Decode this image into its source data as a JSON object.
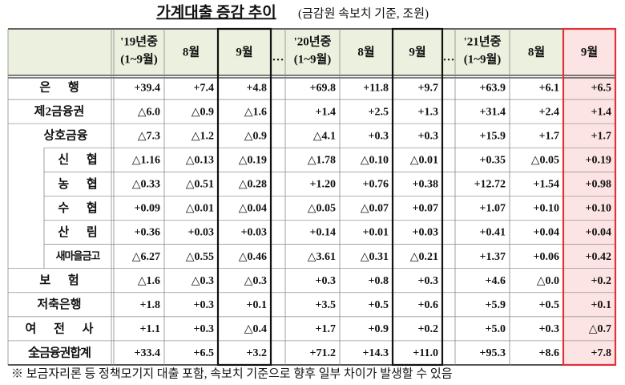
{
  "title": "가계대출 증감 추이",
  "title_note": "(금감원 속보치 기준, 조원)",
  "table": {
    "columns": [
      {
        "label": "'19년중",
        "sub": "(1~9월)"
      },
      {
        "label": "8월"
      },
      {
        "label": "9월"
      },
      {
        "label": "'20년중",
        "sub": "(1~9월)"
      },
      {
        "label": "8월"
      },
      {
        "label": "9월"
      },
      {
        "label": "'21년중",
        "sub": "(1~9월)"
      },
      {
        "label": "8월"
      },
      {
        "label": "9월"
      }
    ],
    "separators": [
      "…",
      "…"
    ],
    "rows": [
      {
        "label": "은 행",
        "cells": [
          "+39.4",
          "+7.4",
          "+4.8",
          "+69.8",
          "+11.8",
          "+9.7",
          "+63.9",
          "+6.1",
          "+6.5"
        ]
      },
      {
        "label": "제2금융권",
        "cells": [
          "△6.0",
          "△0.9",
          "△1.6",
          "+1.4",
          "+2.5",
          "+1.3",
          "+31.4",
          "+2.4",
          "+1.4"
        ]
      },
      {
        "label": "상호금융",
        "cells": [
          "△7.3",
          "△1.2",
          "△0.9",
          "△4.1",
          "+0.3",
          "+0.3",
          "+15.9",
          "+1.7",
          "+1.7"
        ]
      },
      {
        "label": "신 협",
        "cells": [
          "△1.16",
          "△0.13",
          "△0.19",
          "△1.78",
          "△0.10",
          "△0.01",
          "+0.35",
          "△0.05",
          "+0.19"
        ]
      },
      {
        "label": "농 협",
        "cells": [
          "△0.33",
          "△0.51",
          "△0.28",
          "+1.20",
          "+0.76",
          "+0.38",
          "+12.72",
          "+1.54",
          "+0.98"
        ]
      },
      {
        "label": "수 협",
        "cells": [
          "+0.09",
          "△0.01",
          "△0.04",
          "△0.05",
          "△0.07",
          "+0.07",
          "+1.07",
          "+0.10",
          "+0.10"
        ]
      },
      {
        "label": "산 림",
        "cells": [
          "+0.36",
          "+0.03",
          "+0.03",
          "+0.14",
          "+0.01",
          "+0.03",
          "+0.41",
          "+0.04",
          "+0.04"
        ]
      },
      {
        "label": "새마을금고",
        "cells": [
          "△6.27",
          "△0.55",
          "△0.46",
          "△3.61",
          "△0.31",
          "△0.21",
          "+1.37",
          "+0.06",
          "+0.42"
        ]
      },
      {
        "label": "보 험",
        "cells": [
          "△1.6",
          "△0.3",
          "△0.3",
          "+0.3",
          "+0.8",
          "+0.3",
          "+4.6",
          "△0.0",
          "+0.2"
        ]
      },
      {
        "label": "저축은행",
        "cells": [
          "+1.8",
          "+0.3",
          "+0.1",
          "+3.5",
          "+0.5",
          "+0.6",
          "+5.9",
          "+0.5",
          "+0.1"
        ]
      },
      {
        "label": "여 전 사",
        "cells": [
          "+1.1",
          "+0.3",
          "△0.4",
          "+1.7",
          "+0.9",
          "+0.2",
          "+5.0",
          "+0.3",
          "△0.7"
        ]
      },
      {
        "label": "全금융권합계",
        "cells": [
          "+33.4",
          "+6.5",
          "+3.2",
          "+71.2",
          "+14.3",
          "+11.0",
          "+95.3",
          "+8.6",
          "+7.8"
        ]
      }
    ]
  },
  "footnote": "※ 보금자리론 등 정책모기지 대출 포함, 속보치 기준으로 향후 일부 차이가 발생할 수 있음"
}
